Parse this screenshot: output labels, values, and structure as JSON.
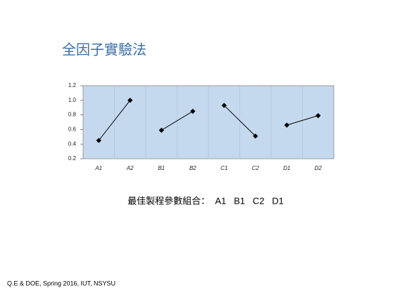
{
  "slide_title": "全因子實驗法",
  "caption": "最佳製程參數組合：  A1   B1   C2   D1",
  "footer": "Q.E & DOE, Spring 2016, IUT, NSYSU",
  "chart_data": {
    "type": "line",
    "categories": [
      "A1",
      "A2",
      "B1",
      "B2",
      "C1",
      "C2",
      "D1",
      "D2"
    ],
    "series": [
      {
        "color": "#000000",
        "values": [
          0.45,
          1.0,
          null,
          null,
          null,
          null,
          null,
          null
        ]
      },
      {
        "color": "#000000",
        "values": [
          null,
          null,
          0.59,
          0.85,
          null,
          null,
          null,
          null
        ]
      },
      {
        "color": "#000000",
        "values": [
          null,
          null,
          null,
          null,
          0.93,
          0.51,
          null,
          null
        ]
      },
      {
        "color": "#000000",
        "values": [
          null,
          null,
          null,
          null,
          null,
          null,
          0.66,
          0.79
        ]
      }
    ],
    "ylim": [
      0.2,
      1.2
    ],
    "yticks": [
      0.2,
      0.4,
      0.6,
      0.8,
      {
        "value": 1,
        "label": "1.0"
      },
      1.2
    ],
    "plot_color": "#c5d9ee"
  }
}
